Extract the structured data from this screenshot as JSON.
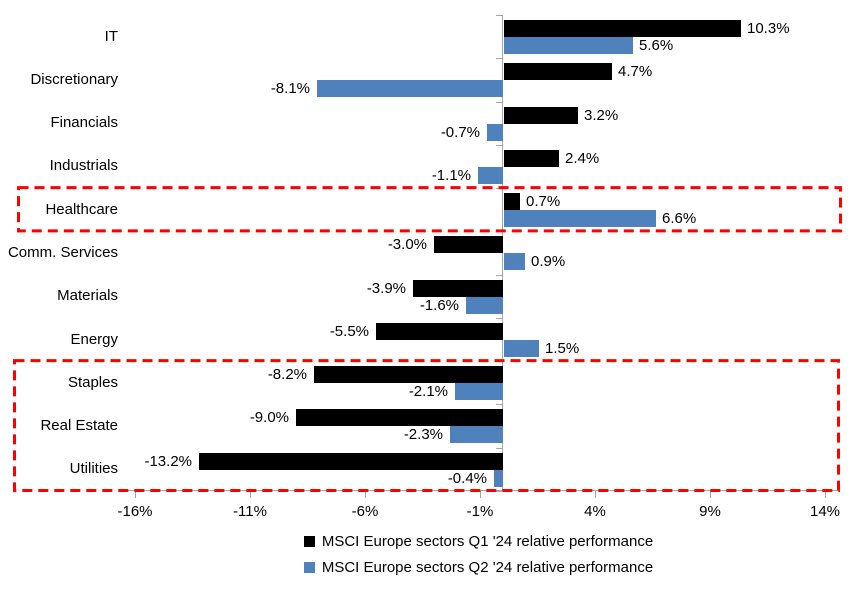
{
  "chart_data": {
    "type": "bar",
    "orientation": "horizontal",
    "title": "",
    "categories": [
      "IT",
      "Discretionary",
      "Financials",
      "Industrials",
      "Healthcare",
      "Comm. Services",
      "Materials",
      "Energy",
      "Staples",
      "Real Estate",
      "Utilities"
    ],
    "series": [
      {
        "name": "MSCI Europe sectors Q1 '24 relative performance",
        "color": "#000000",
        "values": [
          10.3,
          4.7,
          3.2,
          2.4,
          0.7,
          -3.0,
          -3.9,
          -5.5,
          -8.2,
          -9.0,
          -13.2
        ],
        "labels": [
          "10.3%",
          "4.7%",
          "3.2%",
          "2.4%",
          "0.7%",
          "-3.0%",
          "-3.9%",
          "-5.5%",
          "-8.2%",
          "-9.0%",
          "-13.2%"
        ]
      },
      {
        "name": "MSCI Europe sectors Q2 '24 relative performance",
        "color": "#4F81BD",
        "values": [
          5.6,
          -8.1,
          -0.7,
          -1.1,
          6.6,
          0.9,
          -1.6,
          1.5,
          -2.1,
          -2.3,
          -0.4
        ],
        "labels": [
          "5.6%",
          "-8.1%",
          "-0.7%",
          "-1.1%",
          "6.6%",
          "0.9%",
          "-1.6%",
          "1.5%",
          "-2.1%",
          "-2.3%",
          "-0.4%"
        ]
      }
    ],
    "x_axis": {
      "min": -16.5,
      "max": 14.5,
      "step": 5,
      "ticks": [
        {
          "value": -16,
          "label": "-16%"
        },
        {
          "value": -11,
          "label": "-11%"
        },
        {
          "value": -6,
          "label": "-6%"
        },
        {
          "value": -1,
          "label": "-1%"
        },
        {
          "value": 4,
          "label": "4%"
        },
        {
          "value": 9,
          "label": "9%"
        },
        {
          "value": 14,
          "label": "14%"
        }
      ]
    },
    "legend_position": "bottom",
    "annotations": {
      "highlight_boxes": [
        {
          "categories": [
            "Healthcare"
          ],
          "color": "#FF0000",
          "style": "dashed"
        },
        {
          "categories": [
            "Staples",
            "Real Estate",
            "Utilities"
          ],
          "color": "#FF0000",
          "style": "dashed"
        }
      ]
    },
    "axis_color": "#A6A6A6",
    "text_color": "#000000",
    "background": "#FFFFFF"
  }
}
